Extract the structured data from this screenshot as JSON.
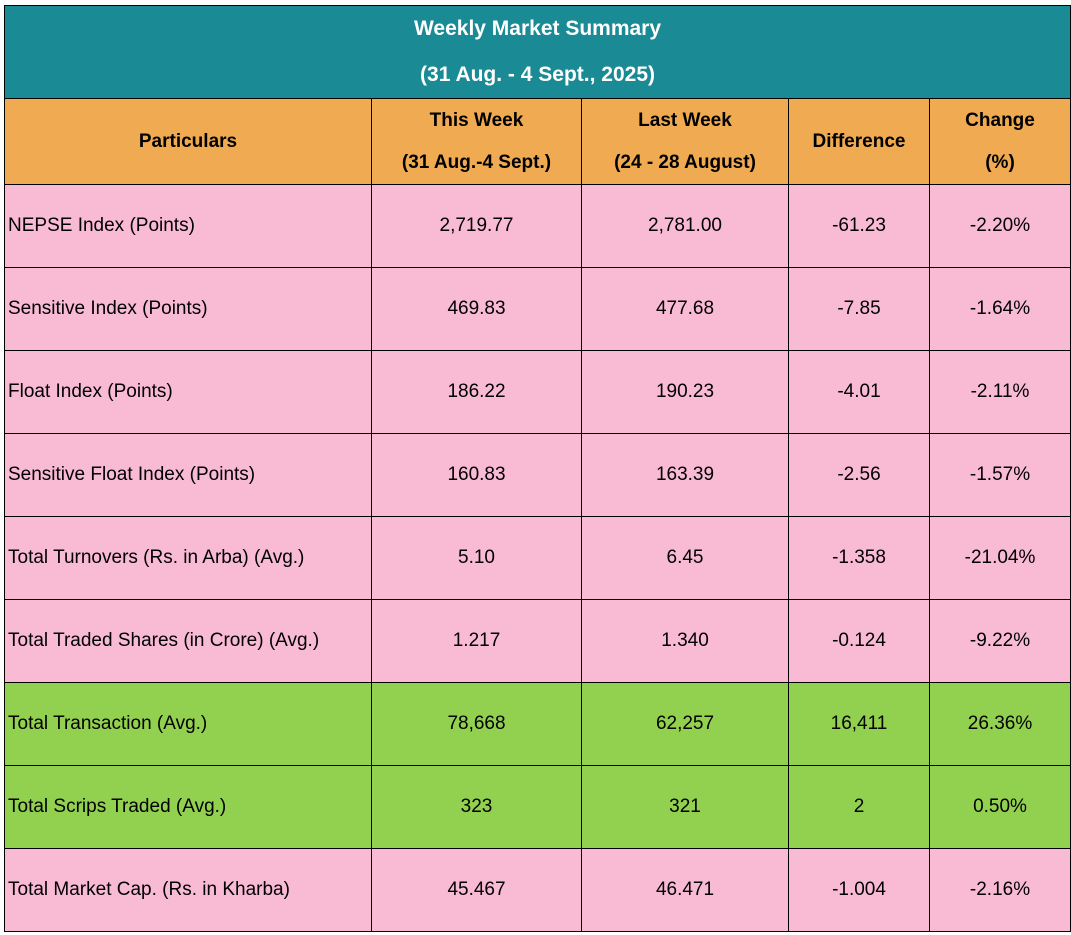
{
  "title": {
    "line1": "Weekly Market Summary",
    "line2": "(31 Aug. - 4 Sept., 2025)"
  },
  "columns": {
    "particulars": "Particulars",
    "this_week": "This Week",
    "this_week_range": "(31 Aug.-4 Sept.)",
    "last_week": "Last Week",
    "last_week_range": "(24 - 28 August)",
    "difference": "Difference",
    "change": "Change",
    "change_unit": "(%)"
  },
  "rows": [
    {
      "particular": "NEPSE Index (Points)",
      "this_week": "2,719.77",
      "last_week": "2,781.00",
      "difference": "-61.23",
      "change": "-2.20%"
    },
    {
      "particular": "Sensitive Index (Points)",
      "this_week": "469.83",
      "last_week": "477.68",
      "difference": "-7.85",
      "change": "-1.64%"
    },
    {
      "particular": "Float Index (Points)",
      "this_week": "186.22",
      "last_week": "190.23",
      "difference": "-4.01",
      "change": "-2.11%"
    },
    {
      "particular": "Sensitive Float Index (Points)",
      "this_week": "160.83",
      "last_week": "163.39",
      "difference": "-2.56",
      "change": "-1.57%"
    },
    {
      "particular": "Total Turnovers (Rs. in Arba) (Avg.)",
      "this_week": "5.10",
      "last_week": "6.45",
      "difference": "-1.358",
      "change": "-21.04%"
    },
    {
      "particular": "Total Traded Shares (in Crore) (Avg.)",
      "this_week": "1.217",
      "last_week": "1.340",
      "difference": "-0.124",
      "change": "-9.22%"
    },
    {
      "particular": "Total Transaction (Avg.)",
      "this_week": "78,668",
      "last_week": "62,257",
      "difference": "16,411",
      "change": "26.36%"
    },
    {
      "particular": "Total Scrips Traded (Avg.)",
      "this_week": "323",
      "last_week": "321",
      "difference": "2",
      "change": "0.50%"
    },
    {
      "particular": "Total Market Cap. (Rs. in Kharba)",
      "this_week": "45.467",
      "last_week": "46.471",
      "difference": "-1.004",
      "change": "-2.16%"
    }
  ],
  "colors": {
    "title_bg": "#1a8a94",
    "header_bg": "#efaa52",
    "decrease_row_bg": "#f9bad3",
    "increase_row_bg": "#92d050"
  }
}
